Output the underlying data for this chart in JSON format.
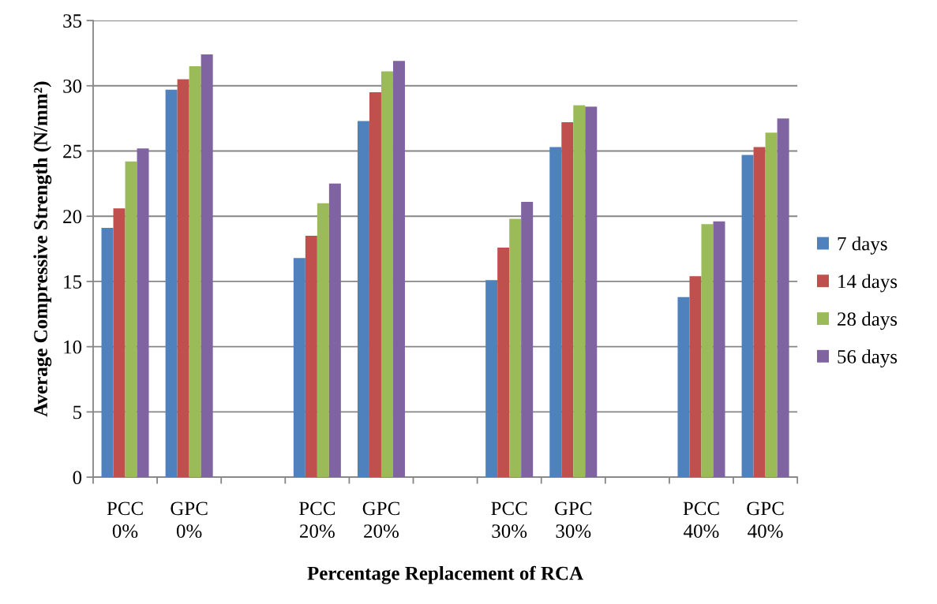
{
  "chart_data": {
    "type": "bar",
    "xlabel": "Percentage Replacement of RCA",
    "ylabel": "Average Compressive Strength (N/mm²)",
    "categories": [
      "PCC\n0%",
      "GPC\n0%",
      null,
      "PCC\n20%",
      "GPC\n20%",
      null,
      "PCC\n30%",
      "GPC\n30%",
      null,
      "PCC\n40%",
      "GPC\n40%"
    ],
    "series": [
      {
        "name": "7 days",
        "color": "#4f81bd",
        "values": [
          19.1,
          29.7,
          null,
          16.8,
          27.3,
          null,
          15.1,
          25.3,
          null,
          13.8,
          24.7
        ]
      },
      {
        "name": "14 days",
        "color": "#c0504d",
        "values": [
          20.6,
          30.5,
          null,
          18.5,
          29.5,
          null,
          17.6,
          27.2,
          null,
          15.4,
          25.3
        ]
      },
      {
        "name": "28 days",
        "color": "#9bbb59",
        "values": [
          24.2,
          31.5,
          null,
          21.0,
          31.1,
          null,
          19.8,
          28.5,
          null,
          19.4,
          26.4
        ]
      },
      {
        "name": "56 days",
        "color": "#8064a2",
        "values": [
          25.2,
          32.4,
          null,
          22.5,
          31.9,
          null,
          21.1,
          28.4,
          null,
          19.6,
          27.5
        ]
      }
    ],
    "ylim": [
      0,
      35
    ],
    "yticks": [
      0,
      5,
      10,
      15,
      20,
      25,
      30,
      35
    ],
    "grid": "y",
    "legend": "right"
  }
}
